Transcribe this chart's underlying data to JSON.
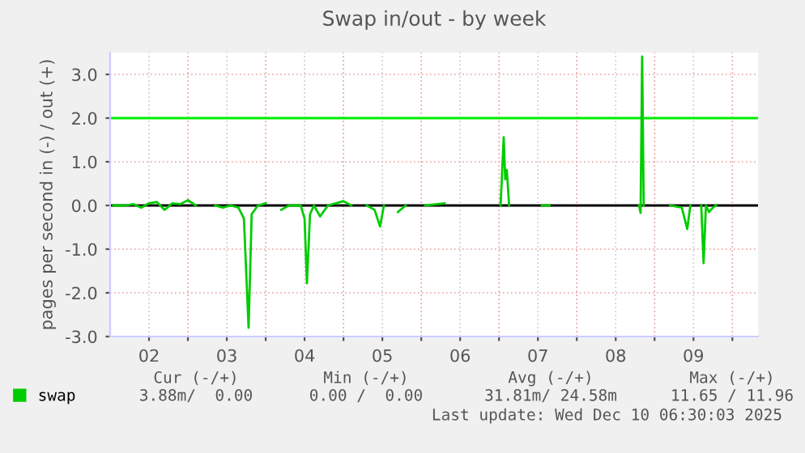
{
  "chart_data": {
    "type": "line",
    "title": "Swap in/out - by week",
    "ylabel": "pages per second in (-) / out (+)",
    "x": [
      2.04,
      2.2,
      2.3,
      2.4,
      2.5,
      2.6,
      2.7,
      2.8,
      2.9,
      3.0,
      3.1,
      3.2,
      3.35,
      3.45,
      3.55,
      3.65,
      3.72,
      3.78,
      3.82,
      3.9,
      4.0,
      4.1,
      4.2,
      4.3,
      4.45,
      4.5,
      4.53,
      4.57,
      4.62,
      4.7,
      4.8,
      4.9,
      5.0,
      5.1,
      5.2,
      5.3,
      5.4,
      5.47,
      5.52,
      5.6,
      5.7,
      5.8,
      5.9,
      6.05,
      6.3,
      6.5,
      7.02,
      7.06,
      7.08,
      7.1,
      7.13,
      7.2,
      7.55,
      7.65,
      8.3,
      8.8,
      8.82,
      8.84,
      8.86,
      8.95,
      9.2,
      9.35,
      9.42,
      9.46,
      9.55,
      9.6,
      9.63,
      9.66,
      9.7,
      9.75,
      9.79
    ],
    "series": [
      {
        "name": "swap",
        "color": "#00cc00",
        "values": [
          0,
          0.0,
          0.03,
          -0.05,
          0.05,
          0.08,
          -0.1,
          0.05,
          0.03,
          0.12,
          0.0,
          null,
          0,
          -0.05,
          0.0,
          -0.05,
          -0.3,
          -2.8,
          -0.2,
          0.0,
          0.05,
          null,
          -0.1,
          0.0,
          0.0,
          -0.3,
          -1.78,
          -0.2,
          0.0,
          -0.25,
          0.0,
          0.05,
          0.1,
          0.0,
          null,
          0.0,
          -0.1,
          -0.48,
          0.0,
          null,
          -0.15,
          0.0,
          null,
          0.0,
          0.05,
          null,
          0,
          1.56,
          0.6,
          0.81,
          0.0,
          null,
          0.0,
          0.0,
          null,
          0.0,
          -0.17,
          3.41,
          0.0,
          null,
          0.0,
          -0.05,
          -0.54,
          0.0,
          null,
          0.0,
          -1.32,
          0.0,
          -0.15,
          -0.05,
          0.0
        ]
      }
    ],
    "xlim": [
      2.0,
      10.33
    ],
    "xticks": [
      {
        "value": 2.5,
        "label": "02"
      },
      {
        "value": 3.5,
        "label": "03"
      },
      {
        "value": 4.5,
        "label": "04"
      },
      {
        "value": 5.5,
        "label": "05"
      },
      {
        "value": 6.5,
        "label": "06"
      },
      {
        "value": 7.5,
        "label": "07"
      },
      {
        "value": 8.5,
        "label": "08"
      },
      {
        "value": 9.5,
        "label": "09"
      },
      {
        "value": 3,
        "label": null
      },
      {
        "value": 4,
        "label": null
      },
      {
        "value": 5,
        "label": null
      },
      {
        "value": 6,
        "label": null
      },
      {
        "value": 7,
        "label": null
      },
      {
        "value": 8,
        "label": null
      },
      {
        "value": 9,
        "label": null
      },
      {
        "value": 10,
        "label": null
      }
    ],
    "ylim": [
      -3.0,
      3.5
    ],
    "yticks": [
      {
        "value": -3,
        "label": "-3.0"
      },
      {
        "value": -2,
        "label": "-2.0"
      },
      {
        "value": -1,
        "label": "-1.0"
      },
      {
        "value": 0,
        "label": "0.0"
      },
      {
        "value": 1,
        "label": "1.0"
      },
      {
        "value": 2,
        "label": "2.0"
      },
      {
        "value": 3,
        "label": "3.0"
      }
    ],
    "ref_lines": [
      {
        "axis": "y",
        "value": 2,
        "color": "#00ee00"
      },
      {
        "axis": "y",
        "value": 0,
        "color": "#000000"
      }
    ],
    "grid": true,
    "legend": "bottom left",
    "marker": "none",
    "line_style": "solid",
    "annotations": [
      "Cur (-/+)",
      "Min (-/+)",
      "Avg (-/+)",
      "Max (-/+)",
      "3.88m/  0.00",
      "0.00 /  0.00",
      "31.81m/ 24.58m",
      "11.65 / 11.96",
      "Last update: Wed Dec 10 06:30:03 2025"
    ]
  }
}
